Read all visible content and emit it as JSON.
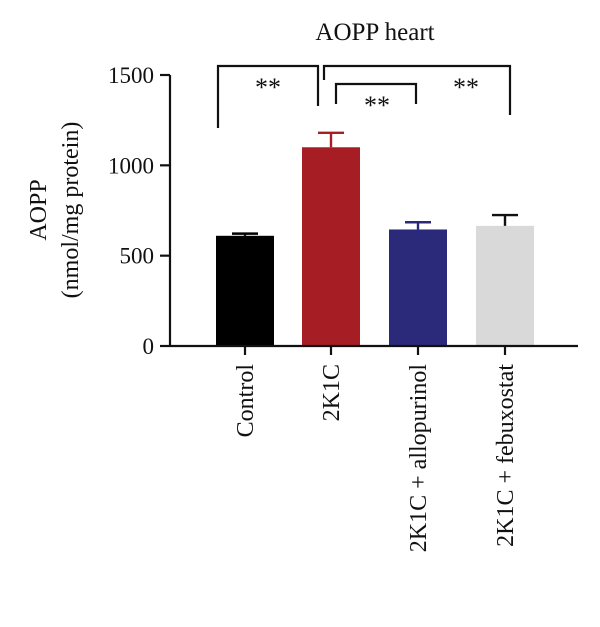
{
  "chart_data": {
    "type": "bar",
    "title": "AOPP heart",
    "ylabel": "AOPP",
    "ylabel_line2": "(nmol/mg protein)",
    "xlabel": "",
    "ylim": [
      0,
      1500
    ],
    "yticks": [
      0,
      500,
      1000,
      1500
    ],
    "categories": [
      "Control",
      "2K1C",
      "2K1C + allopurinol",
      "2K1C + febuxostat"
    ],
    "values": [
      610,
      1100,
      645,
      665
    ],
    "errors": [
      12,
      80,
      40,
      60
    ],
    "colors": [
      "#000000",
      "#a61d24",
      "#2b2a7a",
      "#d9d9d9"
    ],
    "error_colors": [
      "#000000",
      "#a61d24",
      "#2b2a7a",
      "#111111"
    ],
    "grid": false,
    "significance": [
      {
        "from": 0,
        "to": 1,
        "label": "**"
      },
      {
        "from": 1,
        "to": 3,
        "label": "**"
      },
      {
        "from": 1,
        "to": 2,
        "label": "**"
      }
    ]
  }
}
